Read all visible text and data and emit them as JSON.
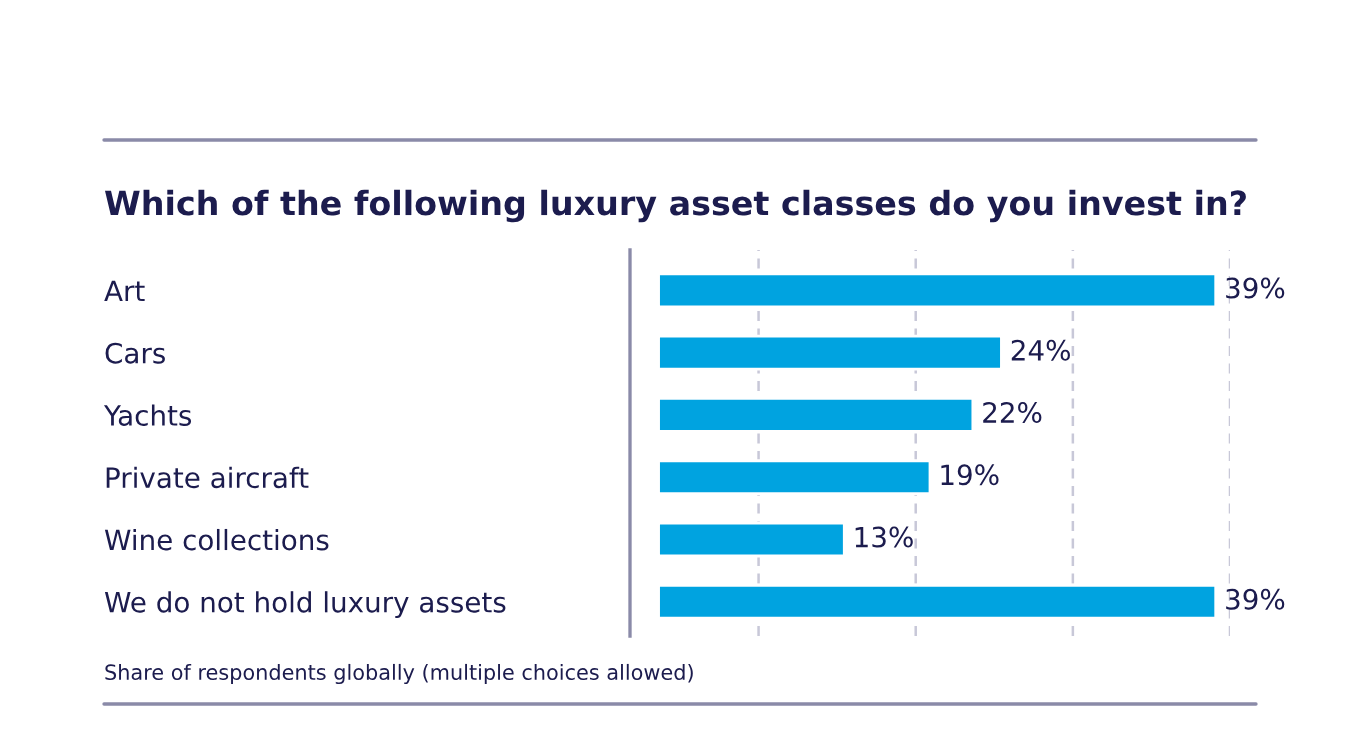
{
  "chart_data": {
    "type": "bar",
    "orientation": "horizontal",
    "title": "Which of the following luxury asset classes do you invest in?",
    "categories": [
      "Art",
      "Cars",
      "Yachts",
      "Private aircraft",
      "Wine collections",
      "We do not hold luxury assets"
    ],
    "values": [
      39,
      24,
      22,
      19,
      13,
      39
    ],
    "value_labels": [
      "39%",
      "24%",
      "22%",
      "19%",
      "13%",
      "39%"
    ],
    "color": "#00a3e0",
    "xlim": [
      -2,
      40
    ],
    "xticks": [
      {
        "value": 7,
        "label": null
      },
      {
        "value": 18,
        "label": null
      },
      {
        "value": 29,
        "label": null
      },
      {
        "value": 40,
        "label": null
      }
    ],
    "grid": "x",
    "annotations": [
      "Share of respondents globally (multiple choices allowed)"
    ]
  }
}
